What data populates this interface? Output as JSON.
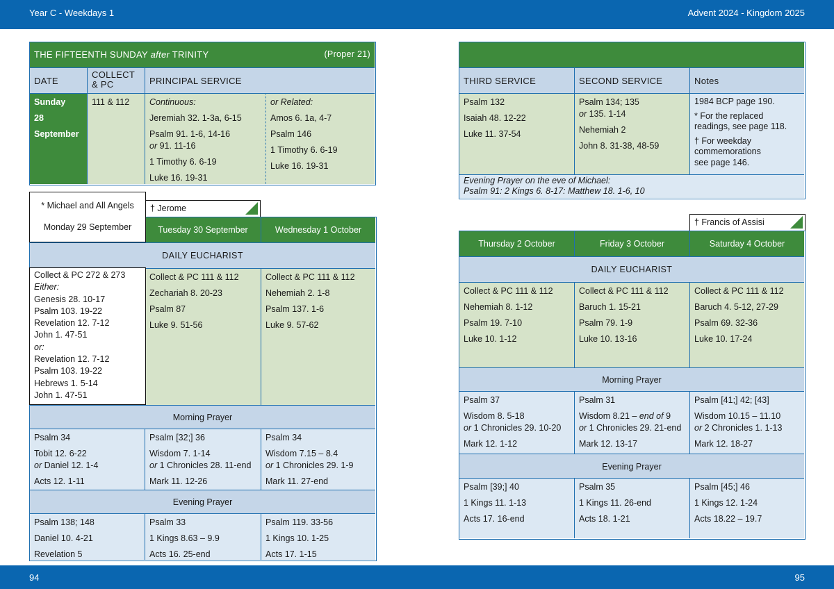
{
  "header": {
    "left": "Year C - Weekdays 1",
    "right": "Advent  2024 - Kingdom 2025"
  },
  "footer": {
    "left": "94",
    "right": "95"
  },
  "sunday": {
    "title_pre": "THE FIFTEENTH SUNDAY ",
    "title_after": "after",
    "title_post": " TRINITY",
    "proper": "(Proper 21)",
    "col_date": "DATE",
    "col_collect_1": "COLLECT",
    "col_collect_2": "& PC",
    "col_principal": "PRINCIPAL SERVICE",
    "date_1": "Sunday",
    "date_2": "28",
    "date_3": "September",
    "collect": "111 & 112",
    "continuous_label": "Continuous:",
    "continuous": [
      "Jeremiah 32. 1-3a, 6-15",
      "Psalm 91. 1-6, 14-16",
      "1 Timothy 6. 6-19",
      "Luke 16. 19-31"
    ],
    "continuous_or": "or",
    "continuous_alt": " 91. 11-16",
    "related_label": "or Related:",
    "related": [
      "Amos 6. 1a, 4-7",
      "Psalm 146",
      "1 Timothy 6. 6-19",
      "Luke 16. 19-31"
    ]
  },
  "sunday_right": {
    "col_third": "THIRD SERVICE",
    "col_second": "SECOND SERVICE",
    "col_notes": "Notes",
    "third": [
      "Psalm 132",
      "Isaiah 48. 12-22",
      "Luke 11. 37-54"
    ],
    "second_1": "Psalm 134; 135",
    "second_or": "or",
    "second_alt": " 135. 1-14",
    "second_rest": [
      "Nehemiah 2",
      "John 8. 31-38, 48-59"
    ],
    "notes_1": "1984 BCP page 190.",
    "notes_2": [
      "* For the replaced",
      "readings, see page 118."
    ],
    "notes_3": [
      "† For weekday",
      "commemorations",
      "see page 146."
    ],
    "eve_line1": "Evening Prayer on the eve of Michael:",
    "eve_line2": "Psalm 91:  2 Kings 6. 8-17:  Matthew 18. 1-6, 10"
  },
  "week1": {
    "michael_label": "* Michael and All Angels",
    "jerome_label": "† Jerome",
    "days": [
      "Monday 29 September",
      "Tuesday 30 September",
      "Wednesday 1 October"
    ],
    "eucharist_label": "DAILY EUCHARIST",
    "mon_euch": {
      "collect": "Collect & PC 272 & 273",
      "either": "Either:",
      "a": [
        "Genesis 28. 10-17",
        "Psalm 103. 19-22",
        "Revelation 12. 7-12",
        "John 1. 47-51"
      ],
      "or": "or:",
      "b": [
        "Revelation 12. 7-12",
        "Psalm 103. 19-22",
        "Hebrews 1. 5-14",
        "John 1. 47-51"
      ]
    },
    "tue_euch": [
      "Collect & PC 111 & 112",
      "Zechariah 8. 20-23",
      "Psalm 87",
      "Luke 9. 51-56"
    ],
    "wed_euch": [
      "Collect & PC 111 & 112",
      "Nehemiah 2. 1-8",
      "Psalm 137. 1-6",
      "Luke 9. 57-62"
    ],
    "morning_label": "Morning Prayer",
    "mon_mp": {
      "psalm": "Psalm 34",
      "r1": "Tobit 12. 6-22",
      "or": "or",
      "r1alt": " Daniel 12. 1-4",
      "r2": "Acts 12. 1-11"
    },
    "tue_mp": {
      "psalm": "Psalm [32;] 36",
      "r1": "Wisdom 7. 1-14",
      "or": "or",
      "r1alt": " 1 Chronicles 28. 11-end",
      "r2": "Mark 11. 12-26"
    },
    "wed_mp": {
      "psalm": "Psalm 34",
      "r1": "Wisdom 7.15 – 8.4",
      "or": "or",
      "r1alt": " 1 Chronicles 29. 1-9",
      "r2": "Mark 11. 27-end"
    },
    "evening_label": "Evening Prayer",
    "mon_ep": [
      "Psalm 138; 148",
      "Daniel 10. 4-21",
      "Revelation 5"
    ],
    "tue_ep": [
      "Psalm 33",
      "1 Kings 8.63 – 9.9",
      "Acts 16. 25-end"
    ],
    "wed_ep": [
      "Psalm 119. 33-56",
      "1 Kings 10. 1-25",
      "Acts 17. 1-15"
    ]
  },
  "week2": {
    "francis_label": "† Francis of Assisi",
    "days": [
      "Thursday 2 October",
      "Friday 3 October",
      "Saturday 4 October"
    ],
    "eucharist_label": "DAILY EUCHARIST",
    "thu_euch": [
      "Collect & PC 111 & 112",
      "Nehemiah 8. 1-12",
      "Psalm 19. 7-10",
      "Luke 10. 1-12"
    ],
    "fri_euch": [
      "Collect & PC 111 & 112",
      "Baruch 1. 15-21",
      "Psalm 79. 1-9",
      "Luke 10. 13-16"
    ],
    "sat_euch": [
      "Collect & PC 111 & 112",
      "Baruch 4. 5-12, 27-29",
      "Psalm 69. 32-36",
      "Luke 10. 17-24"
    ],
    "morning_label": "Morning Prayer",
    "thu_mp": {
      "psalm": "Psalm 37",
      "r1": "Wisdom 8. 5-18",
      "or": "or",
      "r1alt": " 1 Chronicles 29. 10-20",
      "r2": "Mark 12. 1-12"
    },
    "fri_mp": {
      "psalm": "Psalm 31",
      "r1a": "Wisdom 8.21 – ",
      "r1b": "end of",
      "r1c": " 9",
      "or": "or",
      "r1alt": " 1 Chronicles 29. 21-end",
      "r2": "Mark 12. 13-17"
    },
    "sat_mp": {
      "psalm": "Psalm [41;] 42; [43]",
      "r1": "Wisdom 10.15 – 11.10",
      "or": "or",
      "r1alt": " 2 Chronicles 1. 1-13",
      "r2": "Mark 12. 18-27"
    },
    "evening_label": "Evening Prayer",
    "thu_ep": [
      "Psalm [39;] 40",
      "1 Kings 11. 1-13",
      "Acts 17. 16-end"
    ],
    "fri_ep": [
      "Psalm 35",
      "1 Kings 11. 26-end",
      "Acts 18. 1-21"
    ],
    "sat_ep": [
      "Psalm [45;] 46",
      "1 Kings 12. 1-24",
      "Acts 18.22 – 19.7"
    ]
  }
}
